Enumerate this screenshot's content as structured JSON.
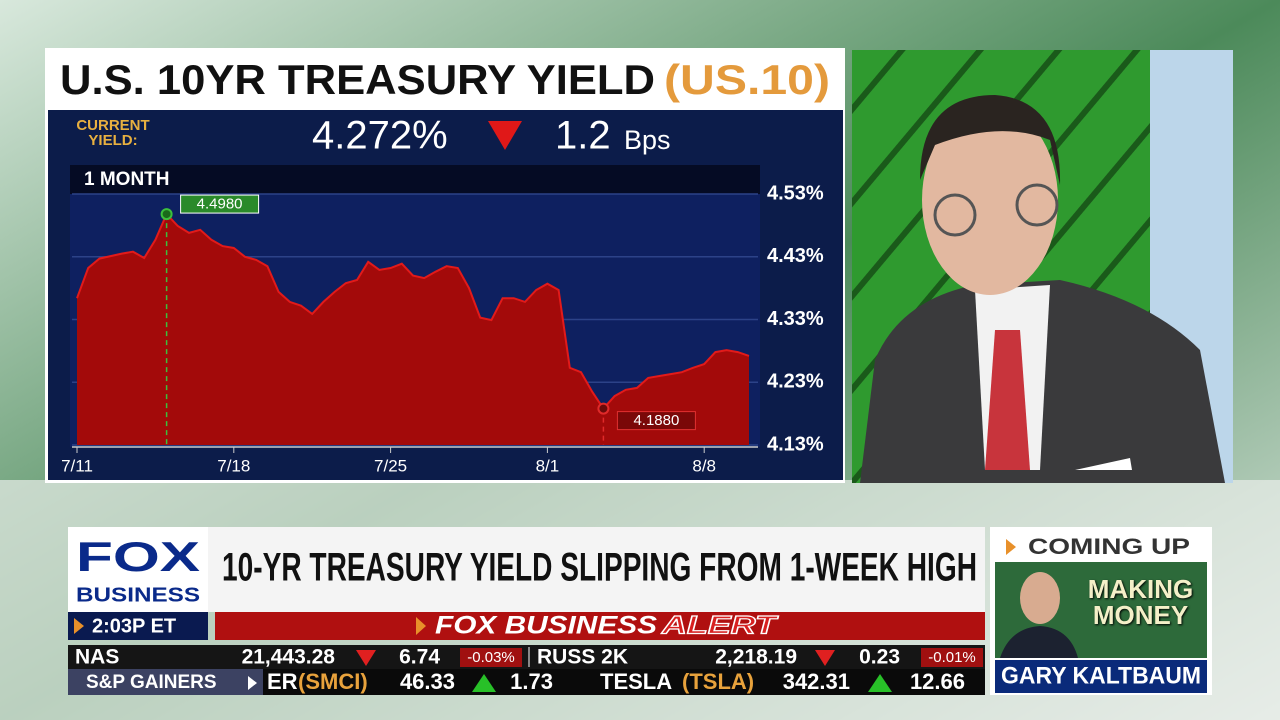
{
  "chart_data": {
    "type": "area",
    "title": "U.S. 10YR TREASURY YIELD",
    "symbol": "(US.10)",
    "period": "1 MONTH",
    "categories": [
      "7/11",
      null,
      null,
      null,
      null,
      null,
      null,
      null,
      null,
      null,
      null,
      null,
      null,
      null,
      "7/18",
      null,
      null,
      null,
      null,
      null,
      null,
      null,
      null,
      null,
      null,
      null,
      null,
      null,
      "7/25",
      null,
      null,
      null,
      null,
      null,
      null,
      null,
      null,
      null,
      null,
      null,
      null,
      null,
      "8/1",
      null,
      null,
      null,
      null,
      null,
      null,
      null,
      null,
      null,
      null,
      null,
      null,
      null,
      "8/8",
      null,
      null,
      null,
      null
    ],
    "values": [
      4.364,
      4.412,
      4.427,
      4.431,
      4.435,
      4.438,
      4.428,
      4.457,
      4.498,
      4.479,
      4.468,
      4.473,
      4.457,
      4.447,
      4.444,
      4.43,
      4.425,
      4.415,
      4.374,
      4.358,
      4.352,
      4.339,
      4.358,
      4.374,
      4.388,
      4.393,
      4.422,
      4.409,
      4.412,
      4.419,
      4.4,
      4.396,
      4.406,
      4.415,
      4.412,
      4.38,
      4.333,
      4.329,
      4.364,
      4.364,
      4.358,
      4.377,
      4.387,
      4.377,
      4.253,
      4.246,
      4.215,
      4.188,
      4.208,
      4.218,
      4.221,
      4.237,
      4.24,
      4.243,
      4.246,
      4.253,
      4.259,
      4.278,
      4.281,
      4.278,
      4.272
    ],
    "value_labels": [
      null,
      null,
      null,
      null,
      null,
      null,
      null,
      null,
      "4.4980",
      null,
      null,
      null,
      null,
      null,
      null,
      null,
      null,
      null,
      null,
      null,
      null,
      null,
      null,
      null,
      null,
      null,
      null,
      null,
      null,
      null,
      null,
      null,
      null,
      null,
      null,
      null,
      null,
      null,
      null,
      null,
      null,
      null,
      null,
      null,
      null,
      null,
      null,
      "4.1880",
      null,
      null,
      null,
      null,
      null,
      null,
      null,
      null,
      null,
      null,
      null,
      null,
      null
    ],
    "color": "#a30a0a",
    "ylim": [
      4.13,
      4.53
    ],
    "yticks": [
      {
        "value": 4.13,
        "label": "4.13%"
      },
      {
        "value": 4.23,
        "label": "4.23%"
      },
      {
        "value": 4.33,
        "label": "4.33%"
      },
      {
        "value": 4.43,
        "label": "4.43%"
      },
      {
        "value": 4.53,
        "label": "4.53%"
      }
    ],
    "grid": true
  },
  "quote": {
    "label": "CURRENT YIELD:",
    "yield": "4.272%",
    "change": "1.2",
    "unit": "Bps"
  },
  "network": {
    "logo_top": "FOX",
    "logo_bottom": "BUSINESS",
    "time": "2:03P ET"
  },
  "headline": "10-YR TREASURY YIELD SLIPPING FROM 1-WEEK HIGH",
  "alert": {
    "brand": "FOX BUSINESS",
    "tag": "ALERT"
  },
  "ticker": {
    "indices": [
      {
        "name": "NAS",
        "price": "21,443.28",
        "change": "6.74",
        "percent": "-0.03%"
      },
      {
        "name": "RUSS 2K",
        "price": "2,218.19",
        "change": "0.23",
        "percent": "-0.01%"
      }
    ],
    "section": "S&P GAINERS",
    "stocks": [
      {
        "name": "ER",
        "symbol": "(SMCI)",
        "price": "46.33",
        "change": "1.73"
      },
      {
        "name": "TESLA",
        "symbol": "(TSLA)",
        "price": "342.31",
        "change": "12.66"
      }
    ]
  },
  "coming_up": {
    "label": "COMING UP",
    "show": "MAKING MONEY",
    "guest": "GARY KALTBAUM"
  }
}
